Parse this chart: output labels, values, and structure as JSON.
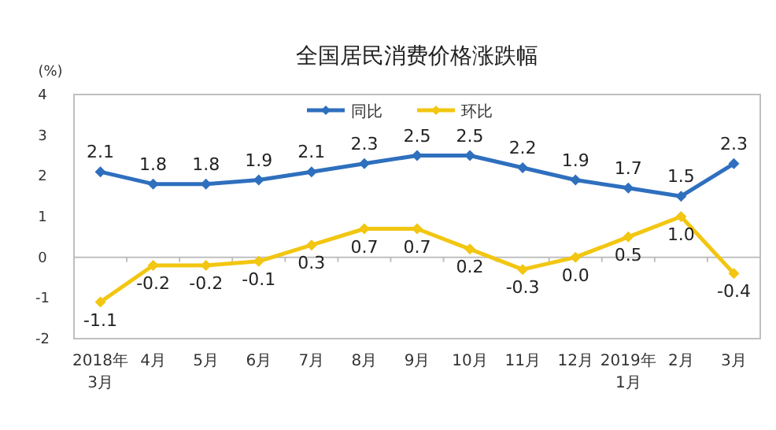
{
  "chart_data": {
    "type": "line",
    "title": "全国居民消费价格涨跌幅",
    "ylabel": "(%)",
    "categories": [
      "2018年\n3月",
      "4月",
      "5月",
      "6月",
      "7月",
      "8月",
      "9月",
      "10月",
      "11月",
      "12月",
      "2019年\n1月",
      "2月",
      "3月"
    ],
    "series": [
      {
        "name": "同比",
        "color": "#2e6fbe",
        "values": [
          2.1,
          1.8,
          1.8,
          1.9,
          2.1,
          2.3,
          2.5,
          2.5,
          2.2,
          1.9,
          1.7,
          1.5,
          2.3
        ],
        "value_labels": [
          "2.1",
          "1.8",
          "1.8",
          "1.9",
          "2.1",
          "2.3",
          "2.5",
          "2.5",
          "2.2",
          "1.9",
          "1.7",
          "1.5",
          "2.3"
        ]
      },
      {
        "name": "环比",
        "color": "#f2c611",
        "values": [
          -1.1,
          -0.2,
          -0.2,
          -0.1,
          0.3,
          0.7,
          0.7,
          0.2,
          -0.3,
          0.0,
          0.5,
          1.0,
          -0.4
        ],
        "value_labels": [
          "-1.1",
          "-0.2",
          "-0.2",
          "-0.1",
          "0.3",
          "0.7",
          "0.7",
          "0.2",
          "-0.3",
          "0.0",
          "0.5",
          "1.0",
          "-0.4"
        ]
      }
    ],
    "ylim": [
      -2,
      4
    ],
    "yticks": [
      -2,
      -1,
      0,
      1,
      2,
      3,
      4
    ],
    "legend": "top",
    "marker": "diamond",
    "line_style": "solid"
  }
}
